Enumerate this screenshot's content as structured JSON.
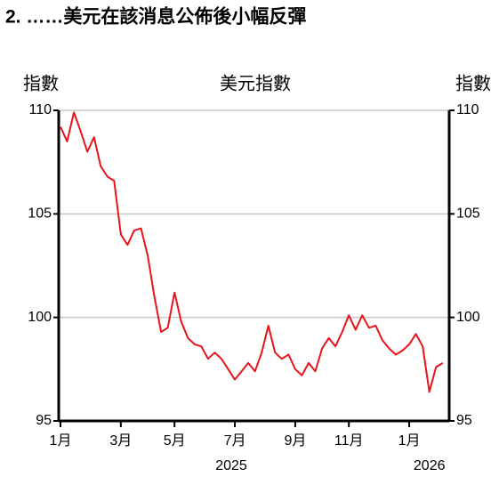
{
  "chart_data": {
    "type": "line",
    "title": "2. ……美元在該消息公佈後小幅反彈",
    "subtitle": "美元指數",
    "y_label": "指數",
    "y2_label": "指數",
    "categories": [
      "1月",
      null,
      null,
      null,
      null,
      null,
      null,
      null,
      null,
      "3月",
      null,
      null,
      null,
      null,
      null,
      null,
      null,
      "5月",
      null,
      null,
      null,
      null,
      null,
      null,
      null,
      null,
      "7月",
      null,
      null,
      null,
      null,
      null,
      null,
      null,
      null,
      "9月",
      null,
      null,
      null,
      null,
      null,
      null,
      null,
      "11月",
      null,
      null,
      null,
      null,
      null,
      null,
      null,
      null,
      "1月",
      null,
      null,
      null,
      null,
      null
    ],
    "years": [
      "2025",
      "2026"
    ],
    "series": [
      {
        "name": "美元指數",
        "color": "#e8131b",
        "values": [
          109.2,
          108.5,
          109.9,
          109.0,
          108.0,
          108.7,
          107.3,
          106.8,
          106.6,
          104.0,
          103.5,
          104.2,
          104.3,
          103.0,
          101.0,
          99.3,
          99.5,
          101.2,
          99.8,
          99.0,
          98.7,
          98.6,
          98.0,
          98.3,
          98.0,
          97.5,
          97.0,
          97.4,
          97.8,
          97.4,
          98.3,
          99.6,
          98.3,
          98.0,
          98.2,
          97.5,
          97.2,
          97.8,
          97.4,
          98.5,
          99.0,
          98.6,
          99.3,
          100.1,
          99.4,
          100.1,
          99.5,
          99.6,
          98.9,
          98.5,
          98.2,
          98.4,
          98.7,
          99.2,
          98.6,
          96.4,
          97.6,
          97.8
        ]
      }
    ],
    "ylim": [
      95,
      110
    ],
    "yticks": [
      95,
      100,
      105,
      110
    ],
    "grid": true
  }
}
